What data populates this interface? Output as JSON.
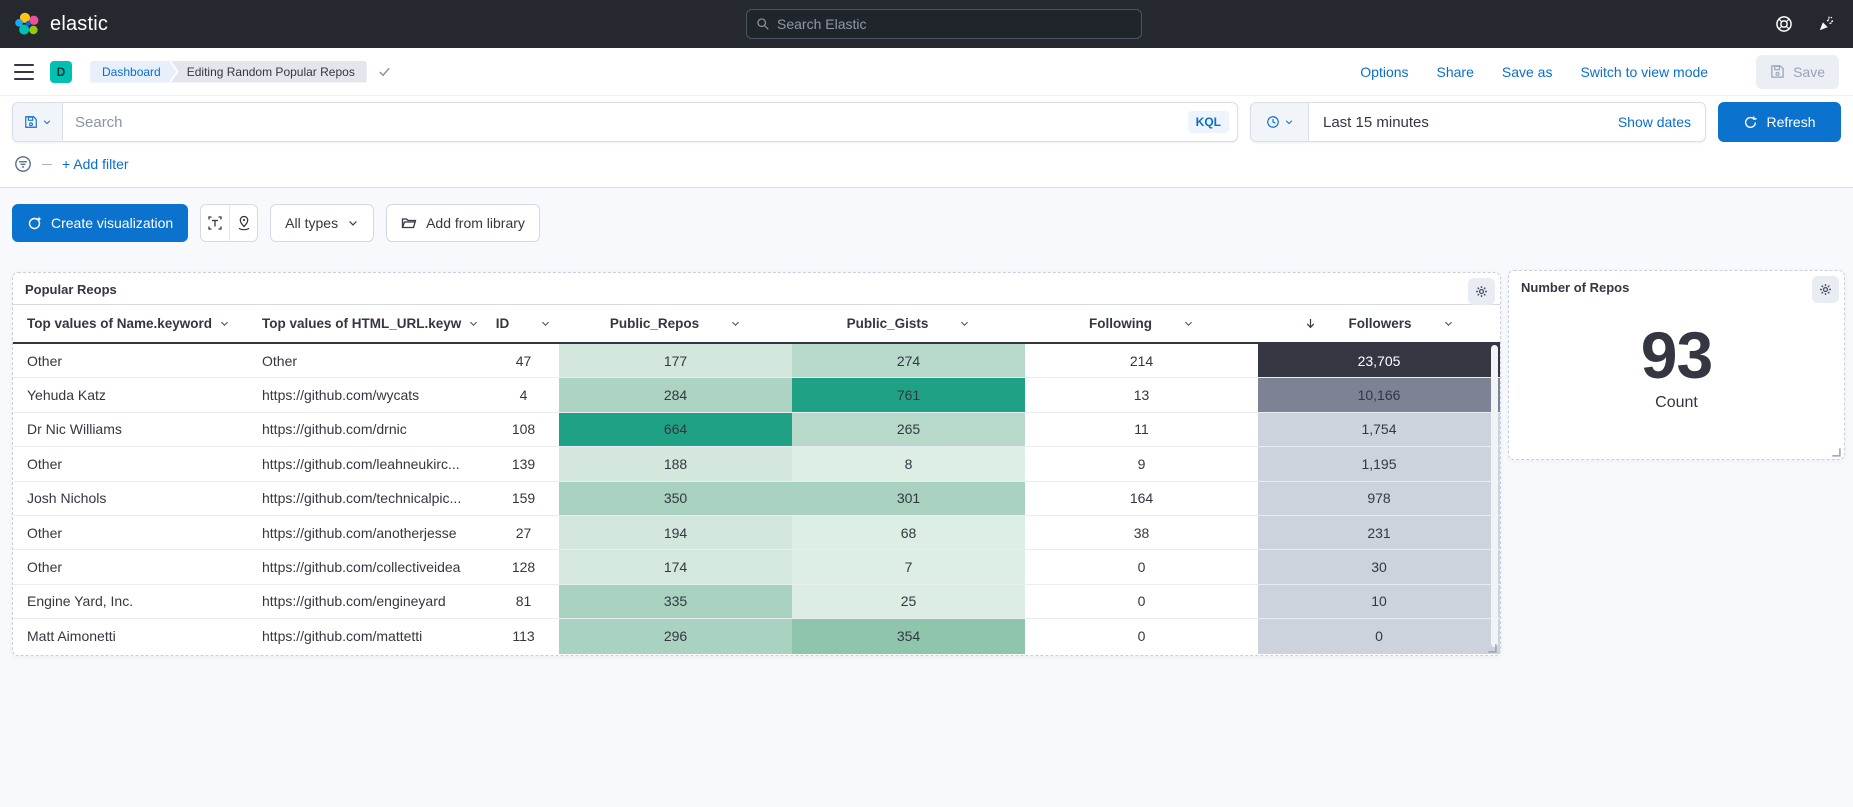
{
  "topbar": {
    "brand": "elastic",
    "search_placeholder": "Search Elastic"
  },
  "nav": {
    "space_initial": "D",
    "breadcrumbs": [
      "Dashboard",
      "Editing Random Popular Repos"
    ],
    "links": [
      "Options",
      "Share",
      "Save as",
      "Switch to view mode"
    ],
    "save_label": "Save"
  },
  "query": {
    "search_placeholder": "Search",
    "kql": "KQL",
    "time_range": "Last 15 minutes",
    "show_dates": "Show dates",
    "refresh": "Refresh",
    "add_filter": "+ Add filter"
  },
  "toolbar": {
    "create": "Create visualization",
    "types": "All types",
    "library": "Add from library"
  },
  "table_panel": {
    "title": "Popular Reops",
    "columns": [
      {
        "label": "Top values of Name.keyword",
        "align": "left",
        "sortable": true
      },
      {
        "label": "Top values of HTML_URL.keyw",
        "align": "left",
        "sortable": true
      },
      {
        "label": "ID",
        "align": "center",
        "sortable": true
      },
      {
        "label": "Public_Repos",
        "align": "center",
        "sortable": true
      },
      {
        "label": "Public_Gists",
        "align": "center",
        "sortable": true
      },
      {
        "label": "Following",
        "align": "center",
        "sortable": true
      },
      {
        "label": "Followers",
        "align": "center",
        "sortable": true,
        "sorted": "desc"
      }
    ],
    "rows": [
      {
        "cells": [
          {
            "t": "Other"
          },
          {
            "t": "Other"
          },
          {
            "t": "47"
          },
          {
            "t": "177",
            "bg": "#d3e7dc"
          },
          {
            "t": "274",
            "bg": "#b6d9c9"
          },
          {
            "t": "214"
          },
          {
            "t": "23,705",
            "bg": "#343741",
            "fg": "#ffffff"
          }
        ]
      },
      {
        "cells": [
          {
            "t": "Yehuda Katz"
          },
          {
            "t": "https://github.com/wycats"
          },
          {
            "t": "4"
          },
          {
            "t": "284",
            "bg": "#add3c2"
          },
          {
            "t": "761",
            "bg": "#1ea184"
          },
          {
            "t": "13"
          },
          {
            "t": "10,166",
            "bg": "#7d8394"
          }
        ]
      },
      {
        "cells": [
          {
            "t": "Dr Nic Williams"
          },
          {
            "t": "https://github.com/drnic"
          },
          {
            "t": "108"
          },
          {
            "t": "664",
            "bg": "#1ea184"
          },
          {
            "t": "265",
            "bg": "#b6d9c9"
          },
          {
            "t": "11"
          },
          {
            "t": "1,754",
            "bg": "#ccd3dd"
          }
        ]
      },
      {
        "cells": [
          {
            "t": "Other"
          },
          {
            "t": "https://github.com/leahneukirc..."
          },
          {
            "t": "139"
          },
          {
            "t": "188",
            "bg": "#d3e7dc"
          },
          {
            "t": "8",
            "bg": "#ddeee5"
          },
          {
            "t": "9"
          },
          {
            "t": "1,195",
            "bg": "#ccd3dd"
          }
        ]
      },
      {
        "cells": [
          {
            "t": "Josh Nichols"
          },
          {
            "t": "https://github.com/technicalpic..."
          },
          {
            "t": "159"
          },
          {
            "t": "350",
            "bg": "#a8d1bf"
          },
          {
            "t": "301",
            "bg": "#a8d1bf"
          },
          {
            "t": "164"
          },
          {
            "t": "978",
            "bg": "#ccd3dd"
          }
        ]
      },
      {
        "cells": [
          {
            "t": "Other"
          },
          {
            "t": "https://github.com/anotherjesse"
          },
          {
            "t": "27"
          },
          {
            "t": "194",
            "bg": "#d3e7dc"
          },
          {
            "t": "68",
            "bg": "#ddeee5"
          },
          {
            "t": "38"
          },
          {
            "t": "231",
            "bg": "#ccd3dd"
          }
        ]
      },
      {
        "cells": [
          {
            "t": "Other"
          },
          {
            "t": "https://github.com/collectiveidea"
          },
          {
            "t": "128"
          },
          {
            "t": "174",
            "bg": "#d4e8dd"
          },
          {
            "t": "7",
            "bg": "#ddeee5"
          },
          {
            "t": "0"
          },
          {
            "t": "30",
            "bg": "#ccd3dd"
          }
        ]
      },
      {
        "cells": [
          {
            "t": "Engine Yard, Inc."
          },
          {
            "t": "https://github.com/engineyard"
          },
          {
            "t": "81"
          },
          {
            "t": "335",
            "bg": "#a8d1bf"
          },
          {
            "t": "25",
            "bg": "#dcede4"
          },
          {
            "t": "0"
          },
          {
            "t": "10",
            "bg": "#ccd3dd"
          }
        ]
      },
      {
        "cells": [
          {
            "t": "Matt Aimonetti"
          },
          {
            "t": "https://github.com/mattetti"
          },
          {
            "t": "113"
          },
          {
            "t": "296",
            "bg": "#aad2c0"
          },
          {
            "t": "354",
            "bg": "#8fc5ac"
          },
          {
            "t": "0"
          },
          {
            "t": "0",
            "bg": "#ccd3dd"
          }
        ]
      }
    ]
  },
  "metric_panel": {
    "title": "Number of Repos",
    "value": "93",
    "label": "Count"
  },
  "colors": {
    "primary": "#0b72ce",
    "header_bg": "#25292f",
    "space_badge": "#00bfb3",
    "dark_text": "#343741",
    "sorted_dark_cell": "#343741"
  }
}
